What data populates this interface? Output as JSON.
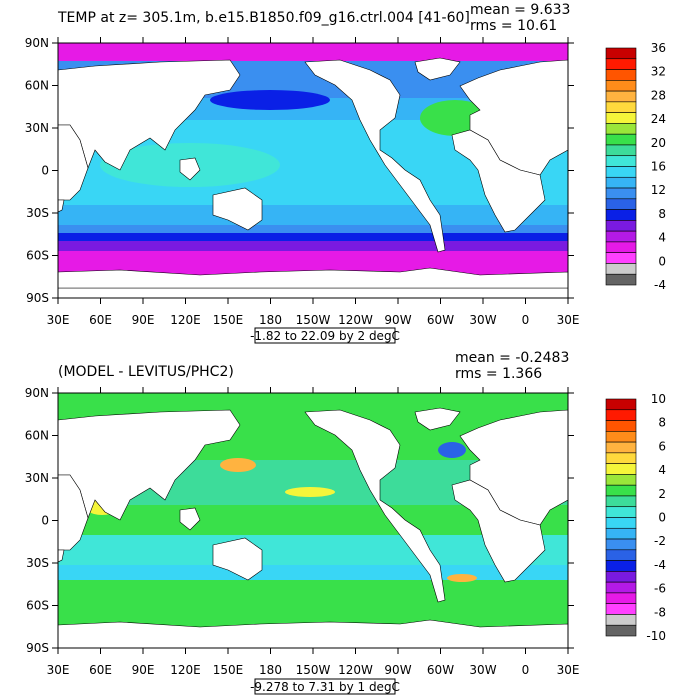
{
  "panels": [
    {
      "title": "TEMP at z= 305.1m, b.e15.B1850.f09_g16.ctrl.004 [41-60]",
      "mean_text": "mean = 9.633",
      "rms_text": "rms = 10.61",
      "range_text": "-1.82 to 22.09 by 2 degC",
      "colorbar_labels": [
        "36",
        "32",
        "28",
        "24",
        "20",
        "16",
        "12",
        "8",
        "4",
        "0",
        "-4"
      ],
      "colorbar_colors": [
        "#c80000",
        "#ff1a00",
        "#ff5500",
        "#ff8c1a",
        "#ffb340",
        "#ffd93d",
        "#f5f53a",
        "#9ae63a",
        "#39e04a",
        "#3ddc9a",
        "#40e6d8",
        "#39d6f5",
        "#36b4f5",
        "#3a8ff0",
        "#2a62e6",
        "#0a20e6",
        "#7a1ae0",
        "#b41ae6",
        "#e61ae6",
        "#ff40ff",
        "#cccccc",
        "#646464"
      ]
    },
    {
      "title": "(MODEL - LEVITUS/PHC2)",
      "mean_text": "mean = -0.2483",
      "rms_text": "rms = 1.366",
      "range_text": "-9.278 to 7.31 by 1 degC",
      "colorbar_labels": [
        "10",
        "8",
        "6",
        "4",
        "2",
        "0",
        "-2",
        "-4",
        "-6",
        "-8",
        "-10"
      ],
      "colorbar_colors": [
        "#c80000",
        "#ff1a00",
        "#ff5500",
        "#ff8c1a",
        "#ffb340",
        "#ffd93d",
        "#f5f53a",
        "#9ae63a",
        "#39e04a",
        "#3ddc9a",
        "#40e6d8",
        "#39d6f5",
        "#36b4f5",
        "#3a8ff0",
        "#2a62e6",
        "#0a20e6",
        "#7a1ae0",
        "#b41ae6",
        "#e61ae6",
        "#ff40ff",
        "#cccccc",
        "#646464"
      ]
    }
  ],
  "axes": {
    "lat_labels": [
      "90N",
      "60N",
      "30N",
      "0",
      "30S",
      "60S",
      "90S"
    ],
    "lon_labels": [
      "30E",
      "60E",
      "90E",
      "120E",
      "150E",
      "180",
      "150W",
      "120W",
      "90W",
      "60W",
      "30W",
      "0",
      "30E"
    ]
  },
  "map_colors": {
    "top_warm_1": "#39d6f5",
    "top_warm_2": "#40e6d8",
    "top_mid": "#36b4f5",
    "top_cool": "#3a8ff0",
    "top_deep": "#0a20e6",
    "top_purple": "#7a1ae0",
    "top_magenta": "#e61ae6",
    "top_green": "#39e04a",
    "bot_green": "#39e04a",
    "bot_aqua": "#3ddc9a",
    "bot_cyan": "#40e6d8",
    "bot_sky": "#39d6f5",
    "bot_yellow": "#f5f53a",
    "bot_orange": "#ffb340",
    "bot_blue": "#2a62e6",
    "land": "#ffffff"
  }
}
